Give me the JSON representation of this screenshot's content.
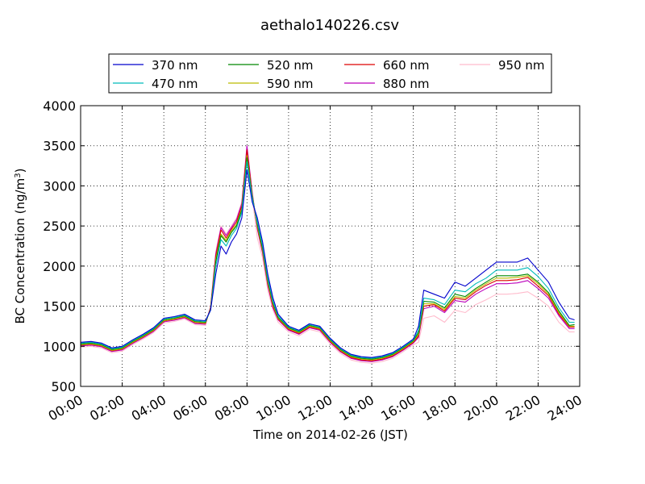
{
  "chart_data": {
    "type": "line",
    "title": "aethalo140226.csv",
    "xlabel": "Time on 2014-02-26 (JST)",
    "ylabel": "BC Concentration (ng/m",
    "ylabel_superscript": "3",
    "ylabel_suffix": ")",
    "xlim": [
      "00:00",
      "24:00"
    ],
    "ylim": [
      500,
      4000
    ],
    "x_ticks": [
      "00:00",
      "02:00",
      "04:00",
      "06:00",
      "08:00",
      "10:00",
      "12:00",
      "14:00",
      "16:00",
      "18:00",
      "20:00",
      "22:00",
      "24:00"
    ],
    "y_ticks": [
      500,
      1000,
      1500,
      2000,
      2500,
      3000,
      3500,
      4000
    ],
    "grid": true,
    "legend_placement": "top, above plot, 4 columns",
    "x": [
      "00:00",
      "00:30",
      "01:00",
      "01:30",
      "02:00",
      "02:30",
      "03:00",
      "03:30",
      "04:00",
      "04:30",
      "05:00",
      "05:30",
      "06:00",
      "06:15",
      "06:30",
      "06:45",
      "07:00",
      "07:15",
      "07:30",
      "07:45",
      "08:00",
      "08:15",
      "08:30",
      "08:45",
      "09:00",
      "09:15",
      "09:30",
      "10:00",
      "10:30",
      "11:00",
      "11:30",
      "12:00",
      "12:30",
      "13:00",
      "13:30",
      "14:00",
      "14:30",
      "15:00",
      "15:30",
      "16:00",
      "16:15",
      "16:30",
      "17:00",
      "17:30",
      "18:00",
      "18:30",
      "19:00",
      "19:30",
      "20:00",
      "20:30",
      "21:00",
      "21:30",
      "22:00",
      "22:30",
      "23:00",
      "23:30",
      "23:45"
    ],
    "series": [
      {
        "name": "370 nm",
        "color": "#0000cc",
        "values": [
          1050,
          1060,
          1040,
          980,
          1000,
          1080,
          1150,
          1230,
          1350,
          1370,
          1400,
          1330,
          1320,
          1450,
          1900,
          2250,
          2150,
          2300,
          2400,
          2600,
          3200,
          2800,
          2600,
          2300,
          1900,
          1600,
          1400,
          1250,
          1200,
          1280,
          1250,
          1100,
          980,
          900,
          870,
          860,
          880,
          920,
          1000,
          1090,
          1250,
          1700,
          1650,
          1600,
          1800,
          1750,
          1850,
          1950,
          2050,
          2050,
          2050,
          2100,
          1950,
          1800,
          1550,
          1350,
          1330
        ]
      },
      {
        "name": "470 nm",
        "color": "#00bbbb",
        "values": [
          1040,
          1050,
          1030,
          970,
          990,
          1070,
          1140,
          1220,
          1340,
          1360,
          1390,
          1320,
          1310,
          1450,
          2000,
          2330,
          2250,
          2380,
          2470,
          2670,
          3300,
          2850,
          2550,
          2250,
          1850,
          1560,
          1380,
          1240,
          1190,
          1270,
          1240,
          1090,
          970,
          890,
          860,
          850,
          870,
          910,
          990,
          1080,
          1200,
          1600,
          1580,
          1520,
          1700,
          1680,
          1780,
          1850,
          1950,
          1950,
          1950,
          1980,
          1870,
          1720,
          1480,
          1300,
          1300
        ]
      },
      {
        "name": "520 nm",
        "color": "#008800",
        "values": [
          1030,
          1040,
          1020,
          960,
          980,
          1060,
          1130,
          1210,
          1330,
          1350,
          1380,
          1310,
          1300,
          1460,
          2050,
          2380,
          2300,
          2420,
          2500,
          2700,
          3350,
          2870,
          2520,
          2220,
          1820,
          1540,
          1360,
          1230,
          1180,
          1260,
          1230,
          1080,
          960,
          880,
          850,
          840,
          860,
          900,
          980,
          1070,
          1170,
          1560,
          1550,
          1480,
          1650,
          1620,
          1720,
          1800,
          1880,
          1880,
          1880,
          1900,
          1800,
          1670,
          1440,
          1260,
          1270
        ]
      },
      {
        "name": "590 nm",
        "color": "#bbbb00",
        "values": [
          1020,
          1030,
          1010,
          950,
          970,
          1050,
          1120,
          1200,
          1320,
          1340,
          1370,
          1300,
          1290,
          1470,
          2080,
          2400,
          2320,
          2440,
          2520,
          2720,
          3380,
          2880,
          2500,
          2200,
          1800,
          1520,
          1350,
          1220,
          1170,
          1250,
          1220,
          1070,
          950,
          870,
          840,
          830,
          850,
          890,
          970,
          1060,
          1150,
          1530,
          1530,
          1460,
          1620,
          1600,
          1700,
          1780,
          1850,
          1850,
          1860,
          1880,
          1780,
          1650,
          1420,
          1250,
          1250
        ]
      },
      {
        "name": "660 nm",
        "color": "#dd0000",
        "values": [
          1015,
          1025,
          1005,
          945,
          965,
          1045,
          1115,
          1195,
          1315,
          1335,
          1365,
          1295,
          1285,
          1480,
          2120,
          2450,
          2350,
          2460,
          2550,
          2750,
          3450,
          2900,
          2480,
          2180,
          1780,
          1500,
          1340,
          1210,
          1160,
          1240,
          1210,
          1060,
          940,
          860,
          830,
          820,
          840,
          880,
          960,
          1050,
          1130,
          1500,
          1520,
          1440,
          1600,
          1580,
          1680,
          1760,
          1820,
          1820,
          1830,
          1860,
          1750,
          1630,
          1400,
          1240,
          1240
        ]
      },
      {
        "name": "880 nm",
        "color": "#bb00bb",
        "values": [
          1005,
          1015,
          995,
          935,
          955,
          1035,
          1105,
          1185,
          1305,
          1325,
          1355,
          1285,
          1275,
          1490,
          2150,
          2480,
          2380,
          2480,
          2580,
          2780,
          3500,
          2920,
          2460,
          2160,
          1760,
          1480,
          1330,
          1200,
          1150,
          1230,
          1200,
          1050,
          930,
          850,
          820,
          810,
          830,
          870,
          950,
          1040,
          1110,
          1470,
          1500,
          1420,
          1570,
          1550,
          1650,
          1720,
          1780,
          1780,
          1790,
          1820,
          1720,
          1600,
          1380,
          1220,
          1220
        ]
      },
      {
        "name": "950 nm",
        "color": "#ffbbcc",
        "values": [
          990,
          1000,
          980,
          920,
          940,
          1020,
          1090,
          1170,
          1290,
          1310,
          1340,
          1270,
          1260,
          1500,
          2180,
          2500,
          2400,
          2500,
          2600,
          2800,
          3400,
          2850,
          2350,
          2100,
          1700,
          1450,
          1300,
          1180,
          1130,
          1210,
          1180,
          1030,
          910,
          830,
          800,
          790,
          810,
          850,
          930,
          1020,
          1050,
          1350,
          1380,
          1300,
          1450,
          1420,
          1520,
          1580,
          1650,
          1650,
          1660,
          1680,
          1600,
          1500,
          1300,
          1180,
          1180
        ]
      }
    ]
  }
}
